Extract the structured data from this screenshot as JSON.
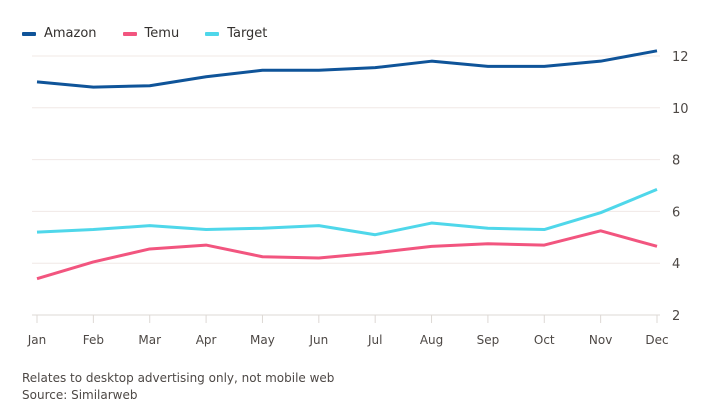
{
  "chart_data": {
    "type": "line",
    "title": "",
    "xlabel": "",
    "ylabel": "",
    "categories": [
      "Jan",
      "Feb",
      "Mar",
      "Apr",
      "May",
      "Jun",
      "Jul",
      "Aug",
      "Sep",
      "Oct",
      "Nov",
      "Dec"
    ],
    "ylim": [
      2,
      12
    ],
    "yticks": [
      2,
      4,
      6,
      8,
      10,
      12
    ],
    "grid": true,
    "legend_position": "top-left",
    "series": [
      {
        "name": "Amazon",
        "color": "#0f5499",
        "values": [
          11.0,
          10.8,
          10.85,
          11.2,
          11.45,
          11.45,
          11.55,
          11.8,
          11.6,
          11.6,
          11.8,
          12.2
        ]
      },
      {
        "name": "Temu",
        "color": "#f2557f",
        "values": [
          3.4,
          4.05,
          4.55,
          4.7,
          4.25,
          4.2,
          4.4,
          4.65,
          4.75,
          4.7,
          5.25,
          4.65
        ]
      },
      {
        "name": "Target",
        "color": "#4fd7ea",
        "values": [
          5.2,
          5.3,
          5.45,
          5.3,
          5.35,
          5.45,
          5.1,
          5.55,
          5.35,
          5.3,
          5.95,
          6.85
        ]
      }
    ]
  },
  "notes": {
    "footnote": "Relates to desktop advertising only, not mobile web",
    "source": "Source: Similarweb"
  }
}
